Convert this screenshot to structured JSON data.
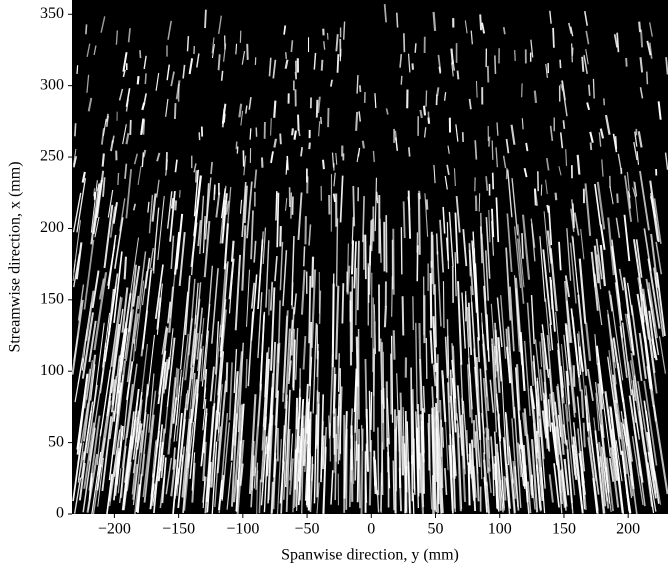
{
  "chart_data": {
    "type": "image",
    "xlabel": "Spanwise direction, y (mm)",
    "ylabel": "Streamwise direction, x (mm)",
    "xlim": [
      -233,
      231
    ],
    "ylim": [
      0,
      360
    ],
    "xticks": [
      {
        "value": -200,
        "label": "−200"
      },
      {
        "value": -150,
        "label": "−150"
      },
      {
        "value": -100,
        "label": "−100"
      },
      {
        "value": -50,
        "label": "−50"
      },
      0,
      50,
      100,
      150,
      200
    ],
    "yticks": [
      0,
      50,
      100,
      150,
      200,
      250,
      300,
      350
    ]
  }
}
